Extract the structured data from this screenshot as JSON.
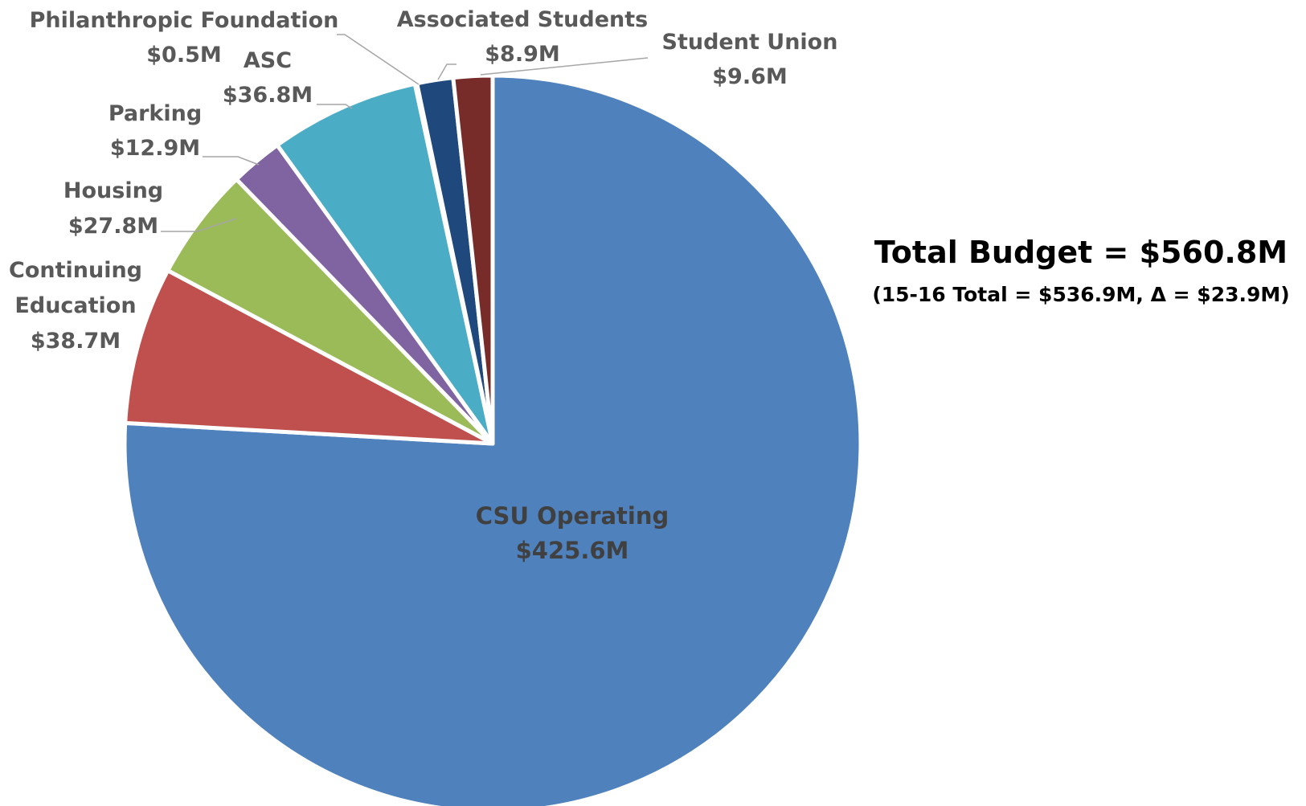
{
  "chart_data": {
    "type": "pie",
    "title": "Total Budget = $560.8M",
    "subtitle": "(15-16 Total = $536.9M, Δ = $23.9M)",
    "units": "$M",
    "slices": [
      {
        "name": "CSU Operating",
        "value": 425.6,
        "label_lines": [
          "CSU Operating",
          "$425.6M"
        ],
        "color": "#4f81bd",
        "label_placement": "inside"
      },
      {
        "name": "Continuing Education",
        "value": 38.7,
        "label_lines": [
          "Continuing",
          "Education",
          "$38.7M"
        ],
        "color": "#c0504d",
        "label_placement": "outside"
      },
      {
        "name": "Housing",
        "value": 27.8,
        "label_lines": [
          "Housing",
          "$27.8M"
        ],
        "color": "#9bbb59",
        "label_placement": "outside"
      },
      {
        "name": "Parking",
        "value": 12.9,
        "label_lines": [
          "Parking",
          "$12.9M"
        ],
        "color": "#8064a2",
        "label_placement": "outside"
      },
      {
        "name": "ASC",
        "value": 36.8,
        "label_lines": [
          "ASC",
          "$36.8M"
        ],
        "color": "#4bacc6",
        "label_placement": "outside"
      },
      {
        "name": "Philanthropic Foundation",
        "value": 0.5,
        "label_lines": [
          "Philanthropic Foundation",
          "$0.5M"
        ],
        "color": "#f79646",
        "label_placement": "outside"
      },
      {
        "name": "Associated Students",
        "value": 8.9,
        "label_lines": [
          "Associated Students",
          "$8.9M"
        ],
        "color": "#1f497d",
        "label_placement": "outside"
      },
      {
        "name": "Student Union",
        "value": 9.6,
        "label_lines": [
          "Student Union",
          "$9.6M"
        ],
        "color": "#772c2a",
        "label_placement": "outside"
      }
    ],
    "start_angle": "12 o'clock",
    "direction": "clockwise",
    "legend": "none"
  }
}
